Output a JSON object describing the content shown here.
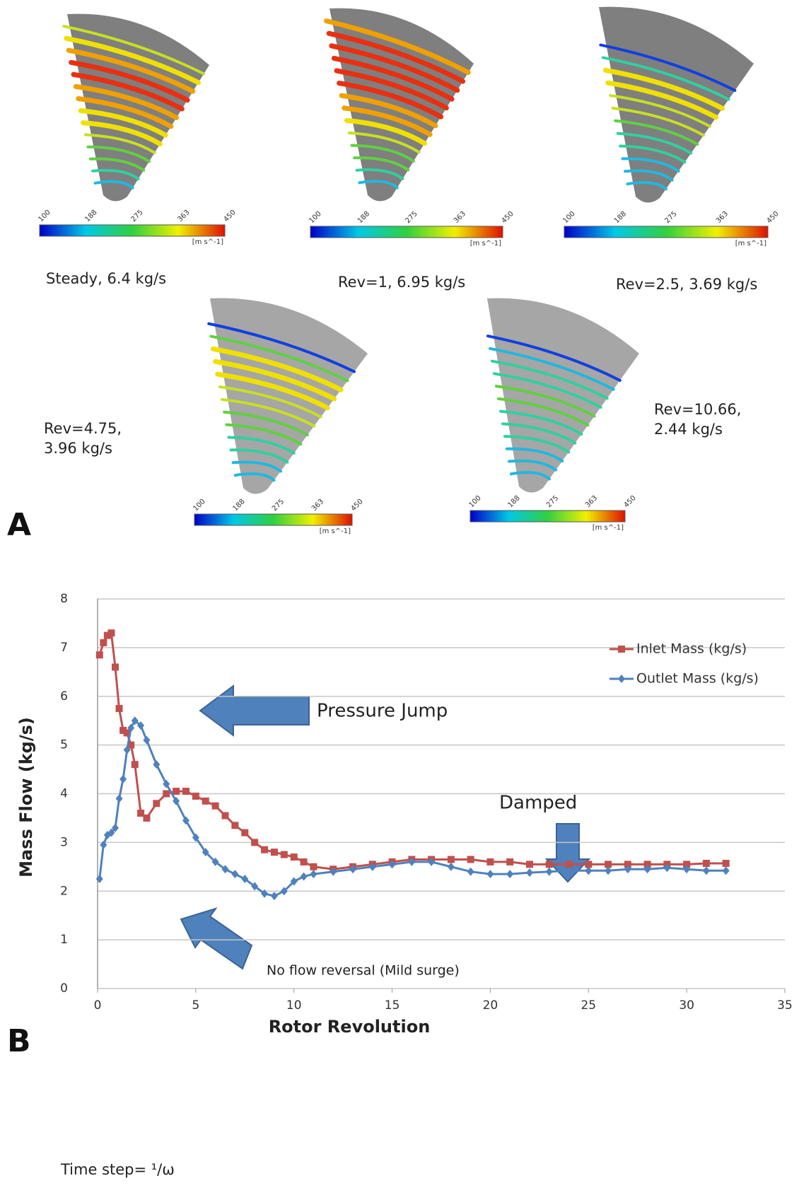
{
  "panel_a": {
    "label": "A",
    "colorbar": {
      "ticks": [
        "100",
        "188",
        "275",
        "363",
        "450"
      ],
      "unit": "[m s^-1]"
    },
    "snapshots": [
      {
        "caption": [
          "Steady, 6.4 kg/s"
        ]
      },
      {
        "caption": [
          "Rev=1, 6.95 kg/s"
        ]
      },
      {
        "caption": [
          "Rev=2.5, 3.69 kg/s"
        ]
      },
      {
        "caption": [
          "Rev=4.75,",
          "3.96 kg/s"
        ]
      },
      {
        "caption": [
          "Rev=10.66,",
          "2.44 kg/s"
        ]
      }
    ]
  },
  "chart_data": {
    "type": "line",
    "panel_label": "B",
    "xlabel": "Rotor Revolution",
    "ylabel": "Mass Flow (kg/s)",
    "xlim": [
      0,
      35
    ],
    "xticks": [
      0,
      5,
      10,
      15,
      20,
      25,
      30,
      35
    ],
    "ylim": [
      0,
      8
    ],
    "yticks": [
      0,
      1,
      2,
      3,
      4,
      5,
      6,
      7,
      8
    ],
    "grid": true,
    "legend": "upper right",
    "x": [
      0.1,
      0.3,
      0.5,
      0.7,
      0.9,
      1.1,
      1.3,
      1.5,
      1.7,
      1.9,
      2.2,
      2.5,
      3,
      3.5,
      4,
      4.5,
      5,
      5.5,
      6,
      6.5,
      7,
      7.5,
      8,
      8.5,
      9,
      9.5,
      10,
      10.5,
      11,
      12,
      13,
      14,
      15,
      16,
      17,
      18,
      19,
      20,
      21,
      22,
      23,
      24,
      25,
      26,
      27,
      28,
      29,
      30,
      31,
      32
    ],
    "series": [
      {
        "name": "Inlet Mass (kg/s)",
        "color": "#c0504d",
        "marker": "square",
        "values": [
          6.85,
          7.1,
          7.25,
          7.3,
          6.6,
          5.75,
          5.3,
          5.25,
          5.0,
          4.6,
          3.6,
          3.5,
          3.8,
          4.0,
          4.05,
          4.05,
          3.95,
          3.85,
          3.75,
          3.55,
          3.35,
          3.2,
          3.0,
          2.85,
          2.8,
          2.75,
          2.7,
          2.6,
          2.5,
          2.45,
          2.5,
          2.55,
          2.6,
          2.65,
          2.65,
          2.65,
          2.65,
          2.6,
          2.6,
          2.55,
          2.55,
          2.55,
          2.55,
          2.55,
          2.55,
          2.55,
          2.55,
          2.55,
          2.57,
          2.57
        ]
      },
      {
        "name": "Outlet Mass (kg/s)",
        "color": "#4f81bd",
        "marker": "diamond",
        "values": [
          2.25,
          2.95,
          3.15,
          3.2,
          3.3,
          3.9,
          4.3,
          4.9,
          5.35,
          5.5,
          5.4,
          5.1,
          4.6,
          4.2,
          3.85,
          3.45,
          3.1,
          2.8,
          2.6,
          2.45,
          2.35,
          2.25,
          2.1,
          1.95,
          1.9,
          2.0,
          2.2,
          2.3,
          2.35,
          2.4,
          2.45,
          2.5,
          2.55,
          2.6,
          2.6,
          2.5,
          2.4,
          2.35,
          2.35,
          2.38,
          2.4,
          2.42,
          2.42,
          2.42,
          2.45,
          2.45,
          2.48,
          2.45,
          2.42,
          2.42
        ]
      }
    ],
    "annotations": [
      "Pressure Jump",
      "Damped",
      "No flow reversal (Mild surge)"
    ],
    "footnote": "Time step= ¹/ω"
  }
}
